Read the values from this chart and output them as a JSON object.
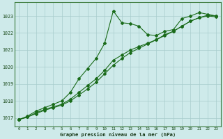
{
  "line1_wavy": {
    "x": [
      0,
      1,
      2,
      3,
      4,
      5,
      6,
      7,
      8,
      9,
      10,
      11,
      12,
      13,
      14,
      15,
      16,
      17,
      18,
      19,
      20,
      21,
      22,
      23
    ],
    "y": [
      1016.9,
      1017.1,
      1017.4,
      1017.6,
      1017.8,
      1018.0,
      1018.5,
      1019.3,
      1019.9,
      1020.5,
      1021.4,
      1023.3,
      1022.6,
      1022.55,
      1022.4,
      1021.9,
      1021.85,
      1022.1,
      1022.2,
      1022.85,
      1023.0,
      1023.2,
      1023.1,
      1023.0
    ]
  },
  "line2_mid": {
    "x": [
      0,
      1,
      2,
      3,
      4,
      5,
      6,
      7,
      8,
      9,
      10,
      11,
      12,
      13,
      14,
      15,
      16,
      17,
      18,
      19,
      20,
      21,
      22,
      23
    ],
    "y": [
      1016.9,
      1017.05,
      1017.3,
      1017.5,
      1017.65,
      1017.8,
      1018.1,
      1018.5,
      1018.9,
      1019.3,
      1019.8,
      1020.4,
      1020.7,
      1021.0,
      1021.2,
      1021.4,
      1021.6,
      1021.9,
      1022.1,
      1022.4,
      1022.7,
      1022.9,
      1023.0,
      1022.95
    ]
  },
  "line3_low": {
    "x": [
      0,
      1,
      2,
      3,
      4,
      5,
      6,
      7,
      8,
      9,
      10,
      11,
      12,
      13,
      14,
      15,
      16,
      17,
      18,
      19,
      20,
      21,
      22,
      23
    ],
    "y": [
      1016.9,
      1017.05,
      1017.25,
      1017.45,
      1017.6,
      1017.75,
      1018.0,
      1018.35,
      1018.7,
      1019.1,
      1019.6,
      1020.1,
      1020.5,
      1020.85,
      1021.1,
      1021.35,
      1021.6,
      1021.85,
      1022.1,
      1022.4,
      1022.7,
      1022.9,
      1023.05,
      1023.0
    ]
  },
  "bg_color": "#ceeaea",
  "grid_color": "#a8cccc",
  "line_color": "#1a6b1a",
  "ylabel_ticks": [
    1017,
    1018,
    1019,
    1020,
    1021,
    1022,
    1023
  ],
  "xlabel": "Graphe pression niveau de la mer (hPa)",
  "ylim": [
    1016.5,
    1023.8
  ],
  "xlim": [
    -0.5,
    23.5
  ]
}
